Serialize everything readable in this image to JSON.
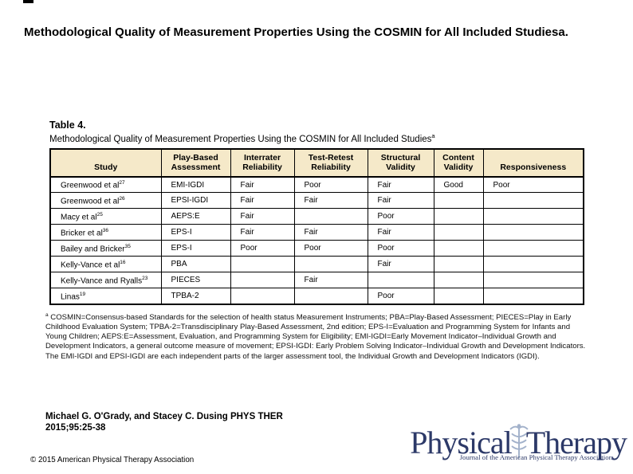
{
  "page": {
    "title": "Methodological Quality of Measurement Properties Using the COSMIN for All Included Studiesa."
  },
  "table": {
    "label": "Table 4.",
    "caption": "Methodological Quality of Measurement Properties Using the COSMIN for All Included Studies",
    "caption_marker": "a",
    "header_bg": "#f5e9c9",
    "columns": [
      "Study",
      "Play-Based Assessment",
      "Interrater Reliability",
      "Test-Retest Reliability",
      "Structural Validity",
      "Content Validity",
      "Responsiveness"
    ],
    "rows": [
      {
        "study": "Greenwood et al",
        "ref": "27",
        "cells": [
          "EMI-IGDI",
          "Fair",
          "Poor",
          "Fair",
          "Good",
          "Poor"
        ]
      },
      {
        "study": "Greenwood et al",
        "ref": "26",
        "cells": [
          "EPSI-IGDI",
          "Fair",
          "Fair",
          "Fair",
          "",
          ""
        ]
      },
      {
        "study": "Macy et al",
        "ref": "25",
        "cells": [
          "AEPS:E",
          "Fair",
          "",
          "Poor",
          "",
          ""
        ]
      },
      {
        "study": "Bricker et al",
        "ref": "36",
        "cells": [
          "EPS-I",
          "Fair",
          "Fair",
          "Fair",
          "",
          ""
        ]
      },
      {
        "study": "Bailey and Bricker",
        "ref": "35",
        "cells": [
          "EPS-I",
          "Poor",
          "Poor",
          "Poor",
          "",
          ""
        ]
      },
      {
        "study": "Kelly-Vance et al",
        "ref": "16",
        "cells": [
          "PBA",
          "",
          "",
          "Fair",
          "",
          ""
        ]
      },
      {
        "study": "Kelly-Vance and Ryalls",
        "ref": "23",
        "cells": [
          "PIECES",
          "",
          "Fair",
          "",
          "",
          ""
        ]
      },
      {
        "study": "Linas",
        "ref": "19",
        "cells": [
          "TPBA-2",
          "",
          "",
          "Poor",
          "",
          ""
        ]
      }
    ]
  },
  "footnote": {
    "marker": "a",
    "text": " COSMIN=Consensus-based Standards for the selection of health status Measurement Instruments; PBA=Play-Based Assessment; PIECES=Play in Early Childhood Evaluation System; TPBA-2=Transdisciplinary Play-Based Assessment, 2nd edition; EPS-I=Evaluation and Programming System for Infants and Young Children; AEPS:E=Assessment, Evaluation, and Programming System for Eligibility; EMI-IGDI=Early Movement Indicator–Individual Growth and Development Indicators, a general outcome measure of movement; EPSI-IGDI: Early Problem Solving Indicator–Individual Growth and Development Indicators. The EMI-IGDI and EPSI-IGDI are each independent parts of the larger assessment tool, the Individual Growth and Development Indicators (IGDI)."
  },
  "citation": {
    "line1": "Michael G. O'Grady, and Stacey C. Dusing PHYS THER",
    "line2": "2015;95:25-38"
  },
  "copyright": "© 2015 American Physical Therapy Association",
  "logo": {
    "word1": "Physical",
    "word2": "Therapy",
    "tagline": "Journal of the American Physical Therapy Association",
    "text_color": "#2c3968",
    "icon_color": "#a3b2cb",
    "icon": "caduceus-icon"
  }
}
